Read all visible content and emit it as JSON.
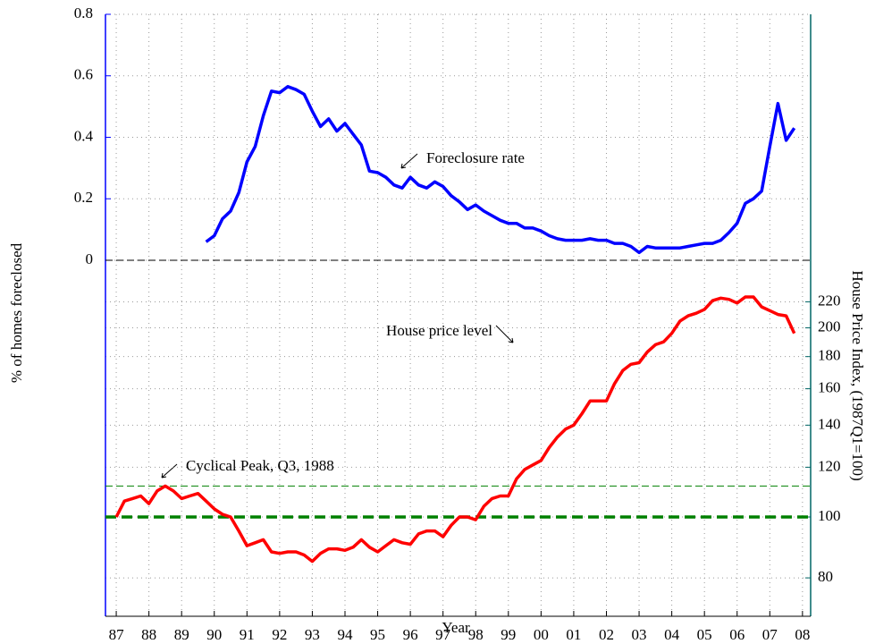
{
  "chart_data": {
    "type": "line",
    "x_label": "Year",
    "y_label": "% of homes foreclosed",
    "y2_label": "House Price Index, (1987Q1=100)",
    "xlim": [
      1986.67,
      2008.25
    ],
    "xticks": [
      {
        "value": 1987,
        "label": "87"
      },
      {
        "value": 1988,
        "label": "88"
      },
      {
        "value": 1989,
        "label": "89"
      },
      {
        "value": 1990,
        "label": "90"
      },
      {
        "value": 1991,
        "label": "91"
      },
      {
        "value": 1992,
        "label": "92"
      },
      {
        "value": 1993,
        "label": "93"
      },
      {
        "value": 1994,
        "label": "94"
      },
      {
        "value": 1995,
        "label": "95"
      },
      {
        "value": 1996,
        "label": "96"
      },
      {
        "value": 1997,
        "label": "97"
      },
      {
        "value": 1998,
        "label": "98"
      },
      {
        "value": 1999,
        "label": "99"
      },
      {
        "value": 2000,
        "label": "00"
      },
      {
        "value": 2001,
        "label": "01"
      },
      {
        "value": 2002,
        "label": "02"
      },
      {
        "value": 2003,
        "label": "03"
      },
      {
        "value": 2004,
        "label": "04"
      },
      {
        "value": 2005,
        "label": "05"
      },
      {
        "value": 2006,
        "label": "06"
      },
      {
        "value": 2007,
        "label": "07"
      },
      {
        "value": 2008,
        "label": "08"
      }
    ],
    "ylim": [
      -1.158,
      0.8
    ],
    "yticks": [
      0,
      0.2,
      0.4,
      0.6,
      0.8
    ],
    "y2lim": [
      69.5,
      631
    ],
    "y2_log": true,
    "y2ticks": [
      80,
      100,
      120,
      140,
      160,
      180,
      200,
      220
    ],
    "grid": true,
    "y_axis_color": "#0000ff",
    "y2_axis_color": "#006666",
    "series": [
      {
        "name": "Foreclosure rate",
        "color": "#0000ff",
        "axis": "y",
        "x": [
          1989.75,
          1990,
          1990.25,
          1990.5,
          1990.75,
          1991,
          1991.25,
          1991.5,
          1991.75,
          1992,
          1992.25,
          1992.5,
          1992.75,
          1993,
          1993.25,
          1993.5,
          1993.75,
          1994,
          1994.25,
          1994.5,
          1994.75,
          1995,
          1995.25,
          1995.5,
          1995.75,
          1996,
          1996.25,
          1996.5,
          1996.75,
          1997,
          1997.25,
          1997.5,
          1997.75,
          1998,
          1998.25,
          1998.5,
          1998.75,
          1999,
          1999.25,
          1999.5,
          1999.75,
          2000,
          2000.25,
          2000.5,
          2000.75,
          2001,
          2001.25,
          2001.5,
          2001.75,
          2002,
          2002.25,
          2002.5,
          2002.75,
          2003,
          2003.25,
          2003.5,
          2003.75,
          2004,
          2004.25,
          2004.5,
          2004.75,
          2005,
          2005.25,
          2005.5,
          2005.75,
          2006,
          2006.25,
          2006.5,
          2006.75,
          2007,
          2007.25,
          2007.5,
          2007.75
        ],
        "values": [
          0.06,
          0.08,
          0.135,
          0.16,
          0.22,
          0.32,
          0.37,
          0.47,
          0.55,
          0.545,
          0.565,
          0.555,
          0.54,
          0.485,
          0.435,
          0.46,
          0.42,
          0.445,
          0.41,
          0.375,
          0.29,
          0.285,
          0.27,
          0.245,
          0.235,
          0.27,
          0.245,
          0.235,
          0.255,
          0.24,
          0.21,
          0.19,
          0.165,
          0.18,
          0.16,
          0.145,
          0.13,
          0.12,
          0.12,
          0.105,
          0.105,
          0.095,
          0.08,
          0.07,
          0.065,
          0.065,
          0.065,
          0.07,
          0.065,
          0.065,
          0.055,
          0.055,
          0.045,
          0.025,
          0.045,
          0.04,
          0.04,
          0.04,
          0.04,
          0.045,
          0.05,
          0.055,
          0.055,
          0.065,
          0.09,
          0.12,
          0.185,
          0.2,
          0.225,
          0.37,
          0.51,
          0.39,
          0.43
        ]
      },
      {
        "name": "House price level",
        "color": "#ff0000",
        "axis": "y2",
        "x": [
          1987,
          1987.25,
          1987.5,
          1987.75,
          1988,
          1988.25,
          1988.5,
          1988.75,
          1989,
          1989.25,
          1989.5,
          1989.75,
          1990,
          1990.25,
          1990.5,
          1990.75,
          1991,
          1991.25,
          1991.5,
          1991.75,
          1992,
          1992.25,
          1992.5,
          1992.75,
          1993,
          1993.25,
          1993.5,
          1993.75,
          1994,
          1994.25,
          1994.5,
          1994.75,
          1995,
          1995.25,
          1995.5,
          1995.75,
          1996,
          1996.25,
          1996.5,
          1996.75,
          1997,
          1997.25,
          1997.5,
          1997.75,
          1998,
          1998.25,
          1998.5,
          1998.75,
          1999,
          1999.25,
          1999.5,
          1999.75,
          2000,
          2000.25,
          2000.5,
          2000.75,
          2001,
          2001.25,
          2001.5,
          2001.75,
          2002,
          2002.25,
          2002.5,
          2002.75,
          2003,
          2003.25,
          2003.5,
          2003.75,
          2004,
          2004.25,
          2004.5,
          2004.75,
          2005,
          2005.25,
          2005.5,
          2005.75,
          2006,
          2006.25,
          2006.5,
          2006.75,
          2007,
          2007.25,
          2007.5,
          2007.75
        ],
        "values": [
          100,
          106,
          107,
          108,
          105,
          110,
          112,
          110,
          107,
          108,
          109,
          106,
          103,
          101,
          100,
          95,
          90,
          91,
          92,
          88,
          87.5,
          88,
          88,
          87,
          85,
          87.5,
          89,
          89,
          88.5,
          89.5,
          92,
          89.5,
          88,
          90,
          92,
          91,
          90.5,
          94,
          95,
          95,
          93,
          97,
          100,
          100,
          99,
          104,
          107,
          108,
          108,
          115,
          119,
          121,
          123,
          129,
          134,
          138,
          140,
          146,
          153,
          153,
          153,
          163,
          171,
          175,
          176,
          183,
          188,
          190,
          196,
          205,
          209,
          211,
          214,
          221,
          223,
          222,
          219,
          224,
          224,
          216,
          213,
          210,
          209,
          196
        ]
      }
    ],
    "reference_lines": [
      {
        "value": 0,
        "axis": "y",
        "color": "#000000"
      },
      {
        "value": 100,
        "axis": "y2",
        "color": "#008000"
      },
      {
        "value": 112,
        "axis": "y2",
        "color": "#008000"
      }
    ],
    "annotations": [
      "Cyclical Peak, Q3, 1988"
    ]
  }
}
